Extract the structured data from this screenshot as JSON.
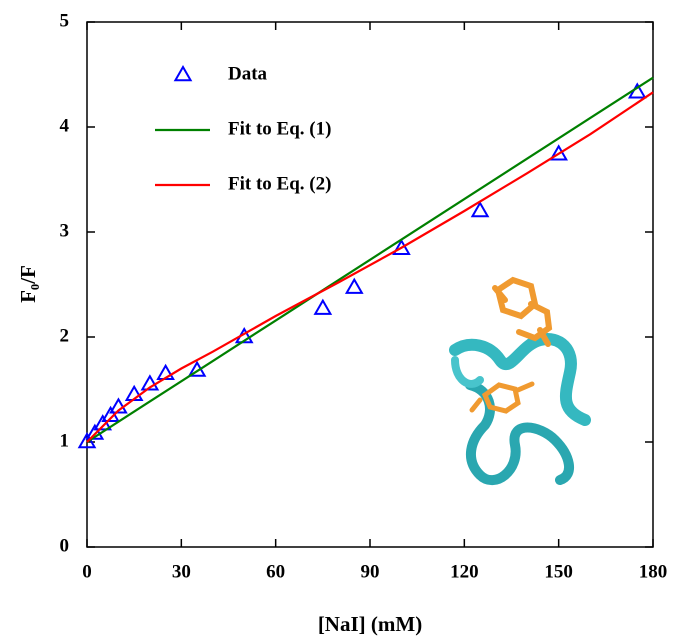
{
  "chart_data": {
    "type": "scatter",
    "x_label": "[NaI] (mM)",
    "y_label": "F₀/F",
    "xlim": [
      0,
      180
    ],
    "xticks": [
      0,
      30,
      60,
      90,
      120,
      150,
      180
    ],
    "ylim": [
      0,
      5
    ],
    "yticks": [
      0,
      1,
      2,
      3,
      4,
      5
    ],
    "legend": "upper left",
    "series": [
      {
        "name": "Data",
        "color": "#0000ff",
        "mode": "markers",
        "marker": "triangle",
        "x": [
          0,
          2.5,
          5,
          7.5,
          10,
          15,
          20,
          25,
          35,
          50,
          75,
          85,
          100,
          125,
          150,
          175
        ],
        "values": [
          1.0,
          1.08,
          1.17,
          1.25,
          1.33,
          1.45,
          1.55,
          1.65,
          1.68,
          2.0,
          2.27,
          2.47,
          2.84,
          3.2,
          3.74,
          4.33
        ]
      },
      {
        "name": "Fit to Eq. (1)",
        "color": "#008000",
        "mode": "line",
        "x": [
          0,
          20,
          40,
          60,
          80,
          100,
          120,
          140,
          160,
          180
        ],
        "values": [
          1.0,
          1.386,
          1.771,
          2.157,
          2.542,
          2.928,
          3.314,
          3.699,
          4.085,
          4.47
        ]
      },
      {
        "name": "Fit to Eq. (2)",
        "color": "#ff0000",
        "mode": "line",
        "x": [
          0,
          10,
          20,
          30,
          40,
          60,
          80,
          100,
          120,
          140,
          160,
          180
        ],
        "values": [
          1.0,
          1.3,
          1.52,
          1.7,
          1.86,
          2.2,
          2.52,
          2.85,
          3.2,
          3.56,
          3.93,
          4.33
        ]
      }
    ]
  }
}
